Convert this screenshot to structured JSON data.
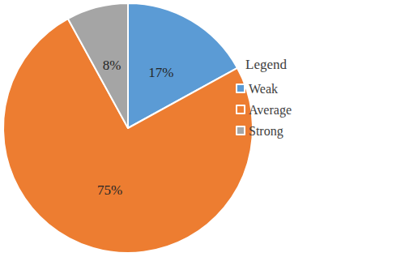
{
  "chart_data": {
    "type": "pie",
    "legend_title": "Legend",
    "categories": [
      "Weak",
      "Average",
      "Strong"
    ],
    "values": [
      17,
      75,
      8
    ],
    "value_labels": [
      "17%",
      "75%",
      "8%"
    ],
    "colors": [
      "#5b9bd5",
      "#ed7d31",
      "#a5a5a5"
    ],
    "data_labels": true,
    "legend": "right"
  }
}
